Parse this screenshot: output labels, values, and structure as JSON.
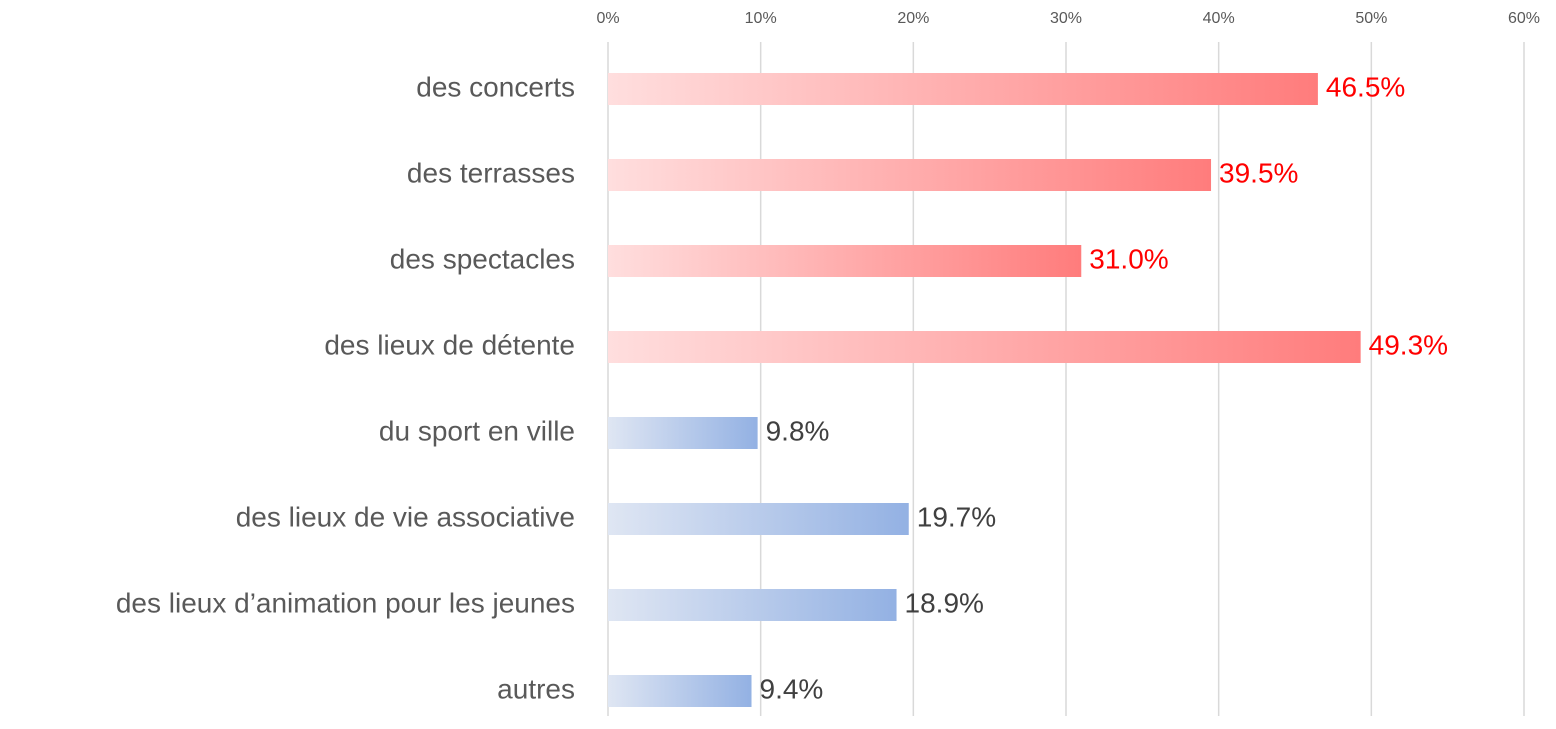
{
  "chart_data": {
    "type": "hbar",
    "categories": [
      "des concerts",
      "des terrasses",
      "des spectacles",
      "des lieux de détente",
      "du sport en ville",
      "des lieux de vie associative",
      "des lieux d’animation pour les jeunes",
      "autres"
    ],
    "values": [
      46.5,
      39.5,
      31.0,
      49.3,
      9.8,
      19.7,
      18.9,
      9.4
    ],
    "value_labels": [
      "46.5%",
      "39.5%",
      "31.0%",
      "49.3%",
      "9.8%",
      "19.7%",
      "18.9%",
      "9.4%"
    ],
    "colors": [
      [
        "#ffdede",
        "#ff7c7c"
      ],
      [
        "#ffdede",
        "#ff7c7c"
      ],
      [
        "#ffdede",
        "#ff7c7c"
      ],
      [
        "#ffdede",
        "#ff7c7c"
      ],
      [
        "#dfe6f3",
        "#93b1e3"
      ],
      [
        "#dfe6f3",
        "#93b1e3"
      ],
      [
        "#dfe6f3",
        "#93b1e3"
      ],
      [
        "#dfe6f3",
        "#93b1e3"
      ]
    ],
    "label_colors": [
      "#ff0000",
      "#ff0000",
      "#ff0000",
      "#ff0000",
      "#404040",
      "#404040",
      "#404040",
      "#404040"
    ],
    "xlim": [
      0,
      60
    ],
    "xticks": [
      {
        "value": 0,
        "label": "0%"
      },
      {
        "value": 10,
        "label": "10%"
      },
      {
        "value": 20,
        "label": "20%"
      },
      {
        "value": 30,
        "label": "30%"
      },
      {
        "value": 40,
        "label": "40%"
      },
      {
        "value": 50,
        "label": "50%"
      },
      {
        "value": 60,
        "label": "60%"
      }
    ],
    "grid": true
  }
}
